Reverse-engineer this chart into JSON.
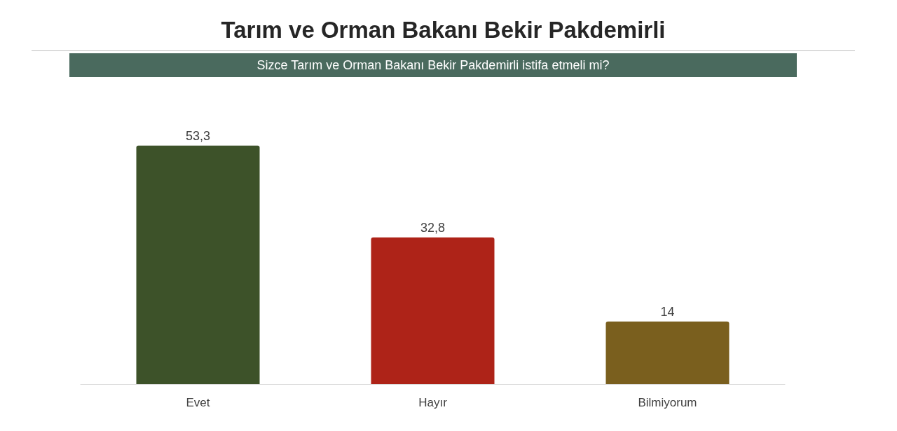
{
  "chart_data": {
    "type": "bar",
    "title": "Tarım ve Orman Bakanı Bekir Pakdemirli",
    "subtitle": "Sizce Tarım ve Orman Bakanı Bekir Pakdemirli istifa etmeli mi?",
    "categories": [
      "Evet",
      "Hayır",
      "Bilmiyorum"
    ],
    "values": [
      53.3,
      32.8,
      14
    ],
    "colors": [
      "#3d5229",
      "#ae2318",
      "#7a5f1e"
    ],
    "value_labels": [
      "53,3",
      "32,8",
      "14"
    ]
  }
}
